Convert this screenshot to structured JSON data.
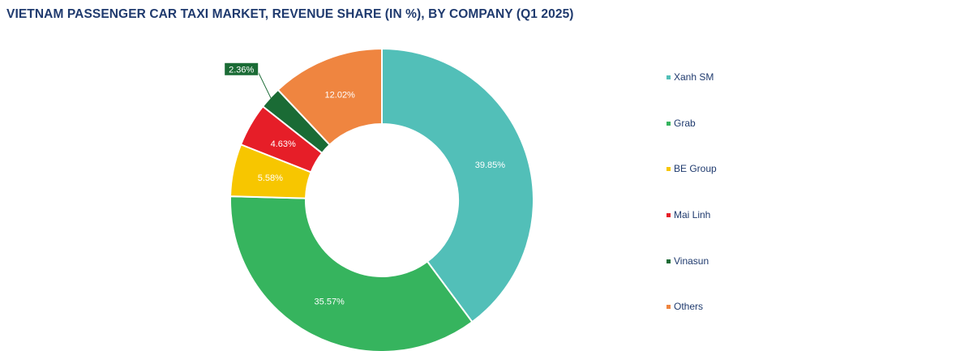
{
  "chart_data": {
    "type": "pie",
    "variant": "donut",
    "title": "VIETNAM PASSENGER CAR TAXI MARKET, REVENUE SHARE (IN %), BY COMPANY (Q1 2025)",
    "categories": [
      "Xanh SM",
      "Grab",
      "BE Group",
      "Mai Linh",
      "Vinasun",
      "Others"
    ],
    "values": [
      39.85,
      35.57,
      5.58,
      4.63,
      2.36,
      12.02
    ],
    "labels": [
      "39.85%",
      "35.57%",
      "5.58%",
      "4.63%",
      "2.36%",
      "12.02%"
    ],
    "colors": [
      "#52bfb8",
      "#36b45e",
      "#f7c600",
      "#e61e28",
      "#1a6b35",
      "#ef8540"
    ],
    "label_colors": [
      "#ffffff",
      "#ffffff",
      "#ffffff",
      "#ffffff",
      "#ffffff",
      "#ffffff"
    ],
    "legend_position": "right"
  }
}
